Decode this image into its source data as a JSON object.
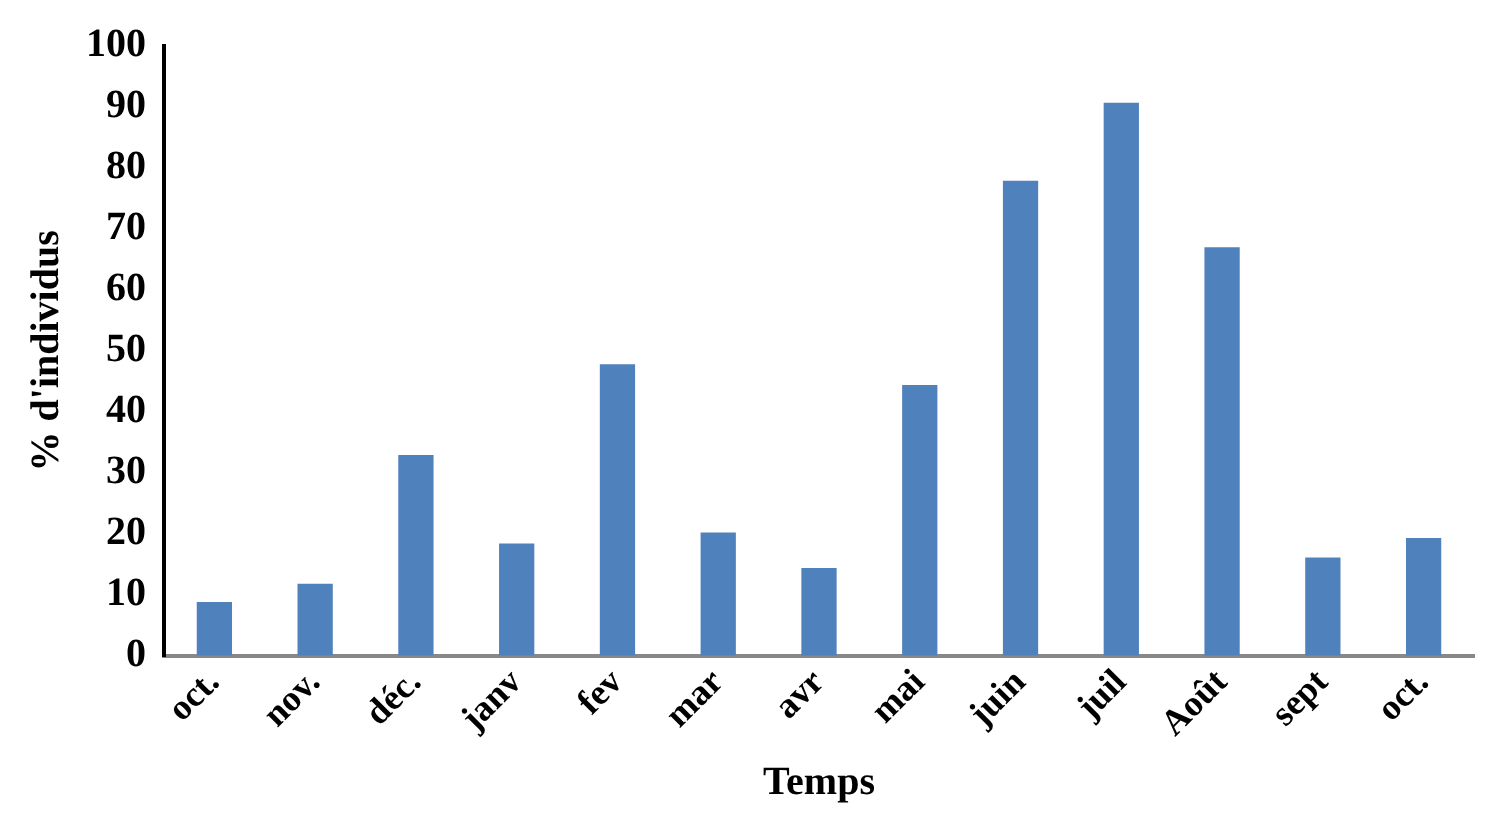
{
  "chart_data": {
    "type": "bar",
    "xlabel": "Temps",
    "ylabel": "% d'individus",
    "categories": [
      "oct.",
      "nov.",
      "déc.",
      "janv",
      "fev",
      "mar",
      "avr",
      "mai",
      "juin",
      "juil",
      "Août",
      "sept",
      "oct."
    ],
    "values": [
      8.8,
      11.8,
      32.9,
      18.4,
      47.8,
      20.2,
      14.4,
      44.4,
      77.9,
      90.7,
      67,
      16.1,
      19.3
    ],
    "color": "#4f81bd",
    "ylim": [
      0,
      100
    ],
    "yticks": [
      0,
      10,
      20,
      30,
      40,
      50,
      60,
      70,
      80,
      90,
      100
    ],
    "grid": false,
    "legend": false
  }
}
